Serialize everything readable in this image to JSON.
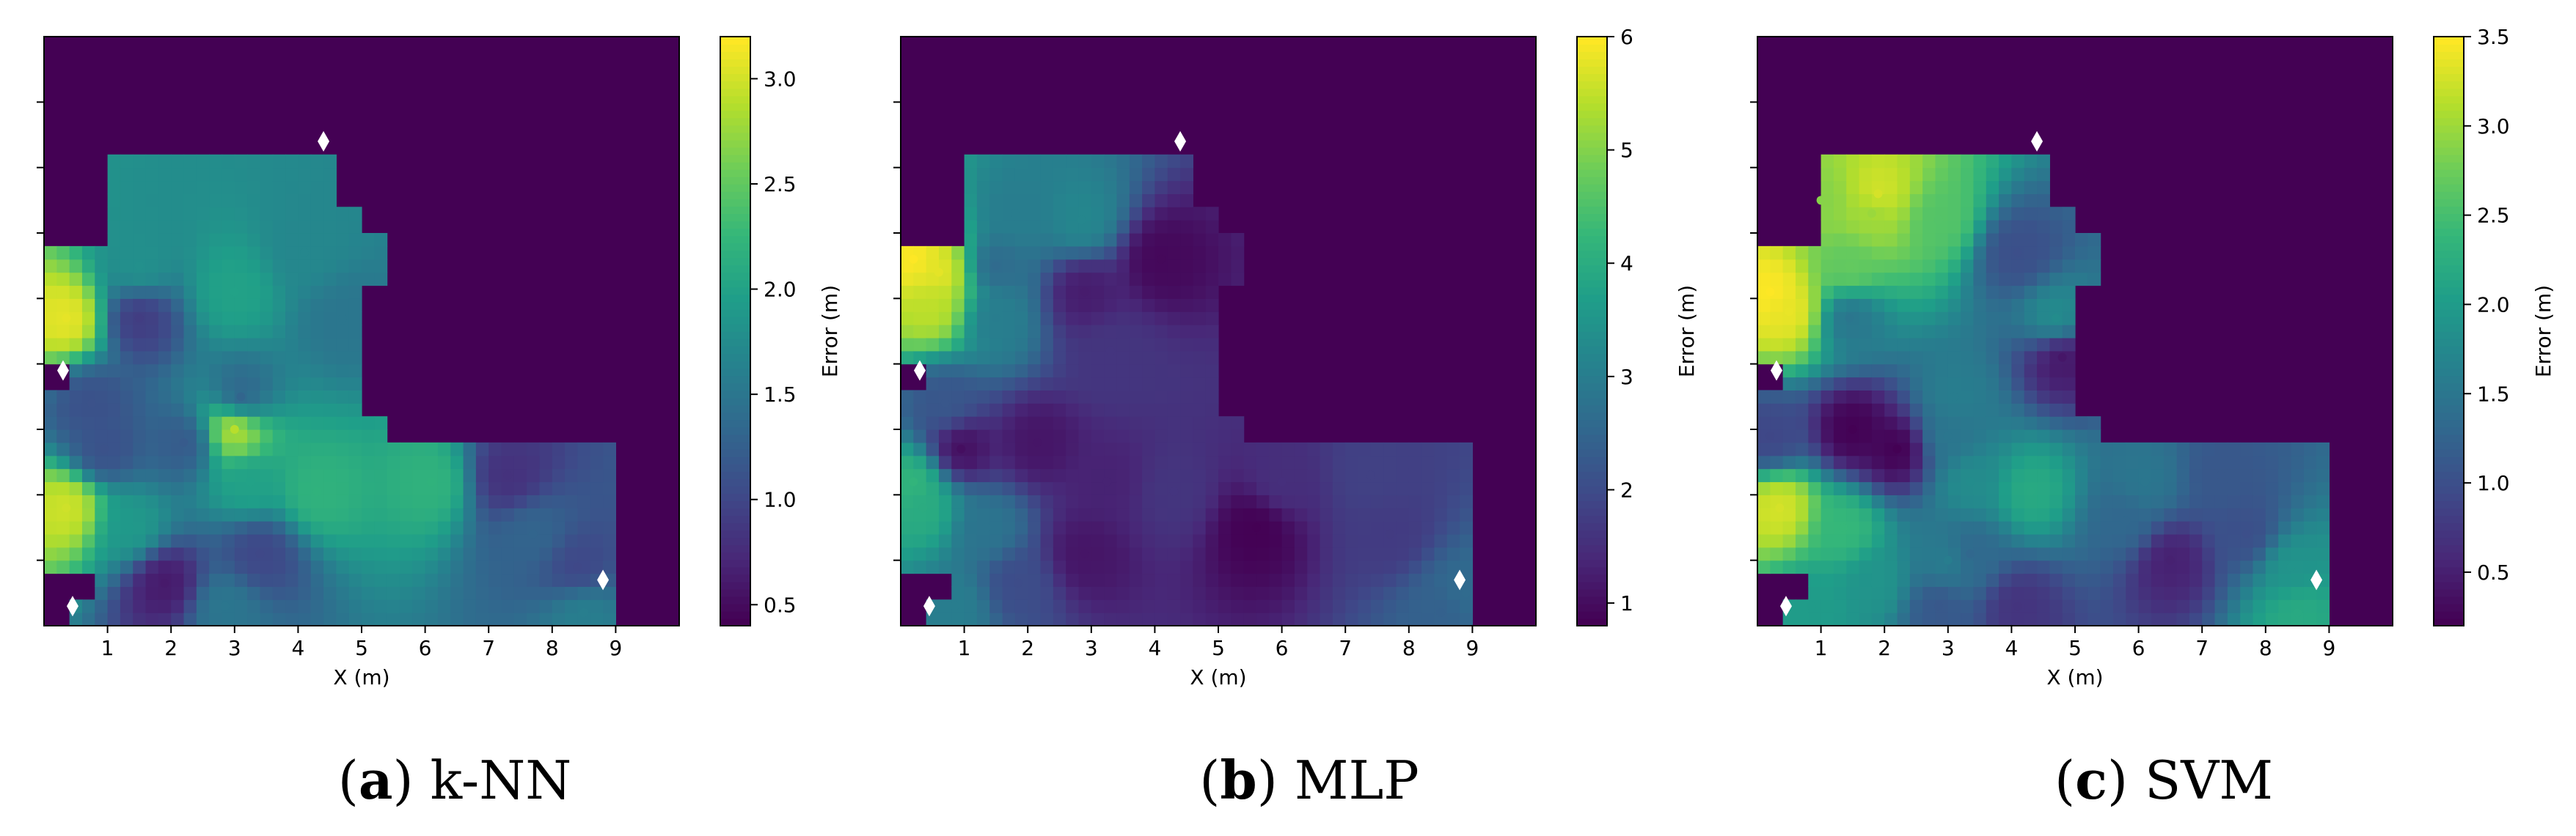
{
  "chart_data": [
    {
      "type": "heatmap",
      "xlabel": "X (m)",
      "xticks": [
        1,
        2,
        3,
        4,
        5,
        6,
        7,
        8,
        9
      ],
      "xlim": [
        0,
        10
      ],
      "ylim": [
        0,
        9
      ],
      "colorbar": {
        "label": "Error  (m)",
        "ticks": [
          0.5,
          1.0,
          1.5,
          2.0,
          2.5,
          3.0
        ],
        "range": [
          0.4,
          3.2
        ],
        "colormap": "viridis"
      },
      "caption": {
        "letter": "a",
        "text": "k-NN"
      },
      "anchors": [
        [
          4.4,
          7.4
        ],
        [
          0.3,
          3.9
        ],
        [
          8.8,
          0.7
        ],
        [
          0.45,
          0.3
        ]
      ],
      "points": [
        {
          "x": 0.35,
          "y": 4.7,
          "e": 3.1
        },
        {
          "x": 0.35,
          "y": 1.8,
          "e": 3.0
        },
        {
          "x": 3.0,
          "y": 3.0,
          "e": 2.9
        },
        {
          "x": 1.5,
          "y": 4.7,
          "e": 0.9
        },
        {
          "x": 0.75,
          "y": 3.4,
          "e": 1.1
        },
        {
          "x": 1.9,
          "y": 0.65,
          "e": 0.6
        },
        {
          "x": 1.5,
          "y": 5.5,
          "e": 1.8
        },
        {
          "x": 3.0,
          "y": 5.1,
          "e": 2.0
        },
        {
          "x": 4.1,
          "y": 5.7,
          "e": 1.7
        },
        {
          "x": 4.7,
          "y": 4.7,
          "e": 1.5
        },
        {
          "x": 3.1,
          "y": 3.5,
          "e": 1.3
        },
        {
          "x": 2.2,
          "y": 2.8,
          "e": 1.2
        },
        {
          "x": 0.95,
          "y": 2.7,
          "e": 1.1
        },
        {
          "x": 3.25,
          "y": 2.2,
          "e": 2.0
        },
        {
          "x": 4.3,
          "y": 2.05,
          "e": 2.2
        },
        {
          "x": 6.1,
          "y": 2.2,
          "e": 2.2
        },
        {
          "x": 1.35,
          "y": 1.5,
          "e": 1.9
        },
        {
          "x": 3.4,
          "y": 1.1,
          "e": 1.0
        },
        {
          "x": 2.85,
          "y": 0.3,
          "e": 1.5
        },
        {
          "x": 7.3,
          "y": 2.3,
          "e": 0.8
        },
        {
          "x": 7.7,
          "y": 1.4,
          "e": 1.3
        },
        {
          "x": 8.4,
          "y": 0.9,
          "e": 1.0
        },
        {
          "x": 8.5,
          "y": 0.2,
          "e": 1.6
        }
      ]
    },
    {
      "type": "heatmap",
      "xlabel": "X (m)",
      "xticks": [
        1,
        2,
        3,
        4,
        5,
        6,
        7,
        8,
        9
      ],
      "xlim": [
        0,
        10
      ],
      "ylim": [
        0,
        9
      ],
      "colorbar": {
        "label": "Error  (m)",
        "ticks": [
          1,
          2,
          3,
          4,
          5,
          6
        ],
        "range": [
          0.8,
          6.0
        ],
        "colormap": "viridis"
      },
      "caption": {
        "letter": "b",
        "text": "MLP"
      },
      "anchors": [
        [
          4.4,
          7.4
        ],
        [
          0.3,
          3.9
        ],
        [
          8.8,
          0.7
        ],
        [
          0.45,
          0.3
        ]
      ],
      "points": [
        {
          "x": 0.2,
          "y": 5.6,
          "e": 6.0
        },
        {
          "x": 0.6,
          "y": 5.4,
          "e": 5.8
        },
        {
          "x": 0.5,
          "y": 4.9,
          "e": 5.5
        },
        {
          "x": 1.8,
          "y": 6.3,
          "e": 3.0
        },
        {
          "x": 2.85,
          "y": 6.2,
          "e": 3.2
        },
        {
          "x": 1.5,
          "y": 5.5,
          "e": 2.6
        },
        {
          "x": 2.9,
          "y": 5.1,
          "e": 1.2
        },
        {
          "x": 4.1,
          "y": 5.6,
          "e": 0.9
        },
        {
          "x": 1.5,
          "y": 4.7,
          "e": 3.0
        },
        {
          "x": 3.3,
          "y": 4.2,
          "e": 1.6
        },
        {
          "x": 0.7,
          "y": 3.4,
          "e": 2.2
        },
        {
          "x": 0.95,
          "y": 2.7,
          "e": 1.0
        },
        {
          "x": 2.15,
          "y": 2.8,
          "e": 1.1
        },
        {
          "x": 3.25,
          "y": 2.2,
          "e": 1.3
        },
        {
          "x": 4.3,
          "y": 2.05,
          "e": 1.6
        },
        {
          "x": 6.0,
          "y": 2.2,
          "e": 1.5
        },
        {
          "x": 0.35,
          "y": 1.8,
          "e": 4.0
        },
        {
          "x": 1.35,
          "y": 1.5,
          "e": 2.8
        },
        {
          "x": 0.2,
          "y": 2.2,
          "e": 4.2
        },
        {
          "x": 2.9,
          "y": 1.1,
          "e": 1.1
        },
        {
          "x": 1.85,
          "y": 0.65,
          "e": 2.0
        },
        {
          "x": 0.85,
          "y": 0.3,
          "e": 3.0
        },
        {
          "x": 5.6,
          "y": 1.5,
          "e": 0.8
        },
        {
          "x": 7.4,
          "y": 2.3,
          "e": 1.8
        },
        {
          "x": 7.7,
          "y": 1.4,
          "e": 1.7
        },
        {
          "x": 8.5,
          "y": 0.2,
          "e": 2.4
        },
        {
          "x": 8.9,
          "y": 0.5,
          "e": 2.6
        }
      ]
    },
    {
      "type": "heatmap",
      "xlabel": "X (m)",
      "xticks": [
        1,
        2,
        3,
        4,
        5,
        6,
        7,
        8,
        9
      ],
      "xlim": [
        0,
        10
      ],
      "ylim": [
        0,
        9
      ],
      "colorbar": {
        "label": "Error  (m)",
        "ticks": [
          0.5,
          1.0,
          1.5,
          2.0,
          2.5,
          3.0,
          3.5
        ],
        "range": [
          0.2,
          3.5
        ],
        "colormap": "viridis"
      },
      "caption": {
        "letter": "c",
        "text": "SVM"
      },
      "anchors": [
        [
          4.4,
          7.4
        ],
        [
          0.3,
          3.9
        ],
        [
          8.8,
          0.7
        ],
        [
          0.45,
          0.3
        ]
      ],
      "points": [
        {
          "x": 0.2,
          "y": 5.1,
          "e": 3.5
        },
        {
          "x": 0.5,
          "y": 4.8,
          "e": 3.4
        },
        {
          "x": 1.9,
          "y": 6.6,
          "e": 3.3
        },
        {
          "x": 1.8,
          "y": 6.3,
          "e": 3.0
        },
        {
          "x": 1.0,
          "y": 6.5,
          "e": 2.9
        },
        {
          "x": 2.85,
          "y": 6.2,
          "e": 2.6
        },
        {
          "x": 1.45,
          "y": 5.5,
          "e": 2.7
        },
        {
          "x": 4.1,
          "y": 5.7,
          "e": 1.0
        },
        {
          "x": 1.45,
          "y": 4.7,
          "e": 1.5
        },
        {
          "x": 4.7,
          "y": 4.7,
          "e": 1.8
        },
        {
          "x": 3.1,
          "y": 3.5,
          "e": 1.6
        },
        {
          "x": 3.0,
          "y": 2.9,
          "e": 1.5
        },
        {
          "x": 1.5,
          "y": 3.0,
          "e": 0.2
        },
        {
          "x": 2.2,
          "y": 2.7,
          "e": 0.2
        },
        {
          "x": 0.2,
          "y": 2.9,
          "e": 0.9
        },
        {
          "x": 3.35,
          "y": 2.2,
          "e": 1.8
        },
        {
          "x": 4.3,
          "y": 2.05,
          "e": 2.2
        },
        {
          "x": 6.1,
          "y": 2.2,
          "e": 1.5
        },
        {
          "x": 7.3,
          "y": 2.3,
          "e": 1.1
        },
        {
          "x": 0.35,
          "y": 1.8,
          "e": 3.3
        },
        {
          "x": 1.35,
          "y": 1.5,
          "e": 2.4
        },
        {
          "x": 5.8,
          "y": 1.6,
          "e": 1.3
        },
        {
          "x": 7.7,
          "y": 1.4,
          "e": 1.0
        },
        {
          "x": 3.0,
          "y": 1.0,
          "e": 1.6
        },
        {
          "x": 3.35,
          "y": 1.1,
          "e": 1.3
        },
        {
          "x": 1.85,
          "y": 0.65,
          "e": 1.9
        },
        {
          "x": 8.4,
          "y": 0.9,
          "e": 1.9
        },
        {
          "x": 2.85,
          "y": 0.3,
          "e": 1.1
        },
        {
          "x": 4.1,
          "y": 0.3,
          "e": 0.7
        },
        {
          "x": 8.5,
          "y": 0.2,
          "e": 2.2
        },
        {
          "x": 0.85,
          "y": 0.3,
          "e": 2.0
        },
        {
          "x": 4.8,
          "y": 4.1,
          "e": 0.4
        },
        {
          "x": 6.5,
          "y": 1.0,
          "e": 0.5
        }
      ]
    }
  ]
}
